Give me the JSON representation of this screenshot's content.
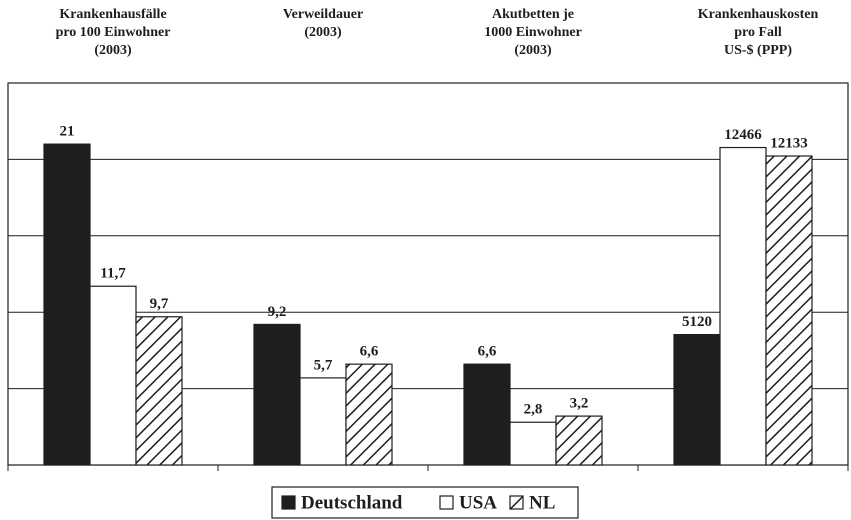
{
  "chart_data": [
    {
      "type": "bar",
      "title": [
        "Krankenhausfälle",
        "pro 100 Einwohner",
        "(2003)"
      ],
      "values": [
        21,
        11.7,
        9.7
      ],
      "value_labels": [
        "21",
        "11,7",
        "9,7"
      ],
      "ylim": [
        0,
        25
      ],
      "yticks": [
        0,
        5,
        10,
        15,
        20,
        25
      ]
    },
    {
      "type": "bar",
      "title": [
        "Verweildauer",
        "(2003)"
      ],
      "values": [
        9.2,
        5.7,
        6.6
      ],
      "value_labels": [
        "9,2",
        "5,7",
        "6,6"
      ],
      "ylim": [
        0,
        25
      ],
      "yticks": [
        0,
        5,
        10,
        15,
        20,
        25
      ]
    },
    {
      "type": "bar",
      "title": [
        "Akutbetten je",
        "1000 Einwohner",
        "(2003)"
      ],
      "values": [
        6.6,
        2.8,
        3.2
      ],
      "value_labels": [
        "6,6",
        "2,8",
        "3,2"
      ],
      "ylim": [
        0,
        25
      ],
      "yticks": [
        0,
        5,
        10,
        15,
        20,
        25
      ]
    },
    {
      "type": "bar",
      "title": [
        "Krankenhauskosten",
        "pro Fall",
        "US-$ (PPP)"
      ],
      "values": [
        5120,
        12466,
        12133
      ],
      "value_labels": [
        "5120",
        "12466",
        "12133"
      ],
      "ylim": [
        0,
        15000
      ],
      "yticks": [
        0,
        3000,
        6000,
        9000,
        12000,
        15000
      ]
    }
  ],
  "legend": {
    "entries": [
      "Deutschland",
      "USA",
      "NL"
    ],
    "styles": [
      "solid",
      "open",
      "hatched"
    ],
    "color": "#1e1e1e"
  }
}
